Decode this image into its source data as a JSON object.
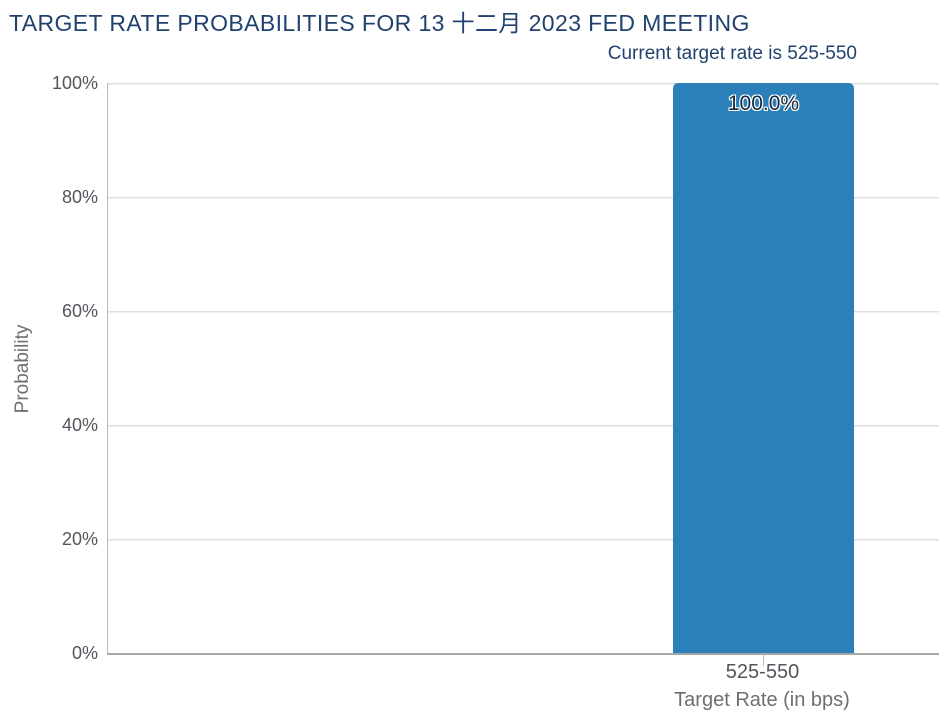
{
  "chart_data": {
    "type": "bar",
    "title": "TARGET RATE PROBABILITIES FOR 13 十二月 2023 FED MEETING",
    "subtitle": "Current target rate is 525-550",
    "xlabel": "Target Rate (in bps)",
    "ylabel": "Probability",
    "categories": [
      "525-550"
    ],
    "values": [
      100.0
    ],
    "data_labels": [
      "100.0%"
    ],
    "ylim": [
      0,
      100
    ],
    "ytick_labels": [
      "100%",
      "80%",
      "60%",
      "40%",
      "20%",
      "0%"
    ],
    "grid": true,
    "legend_position": "none",
    "bar_color": "#2b80b9"
  },
  "colors": {
    "background": "#ffffff",
    "title": "#21426e",
    "bar": "#2b80b9",
    "bar_label_text": "#17293e",
    "axis_tick_label": "#54545c",
    "axis_title": "#6f6f6f",
    "gridline": "#dedede",
    "gridline_light": "#efefef",
    "axis_line": "#a6a6a6",
    "y_axis_border": "#b9b9b9"
  }
}
